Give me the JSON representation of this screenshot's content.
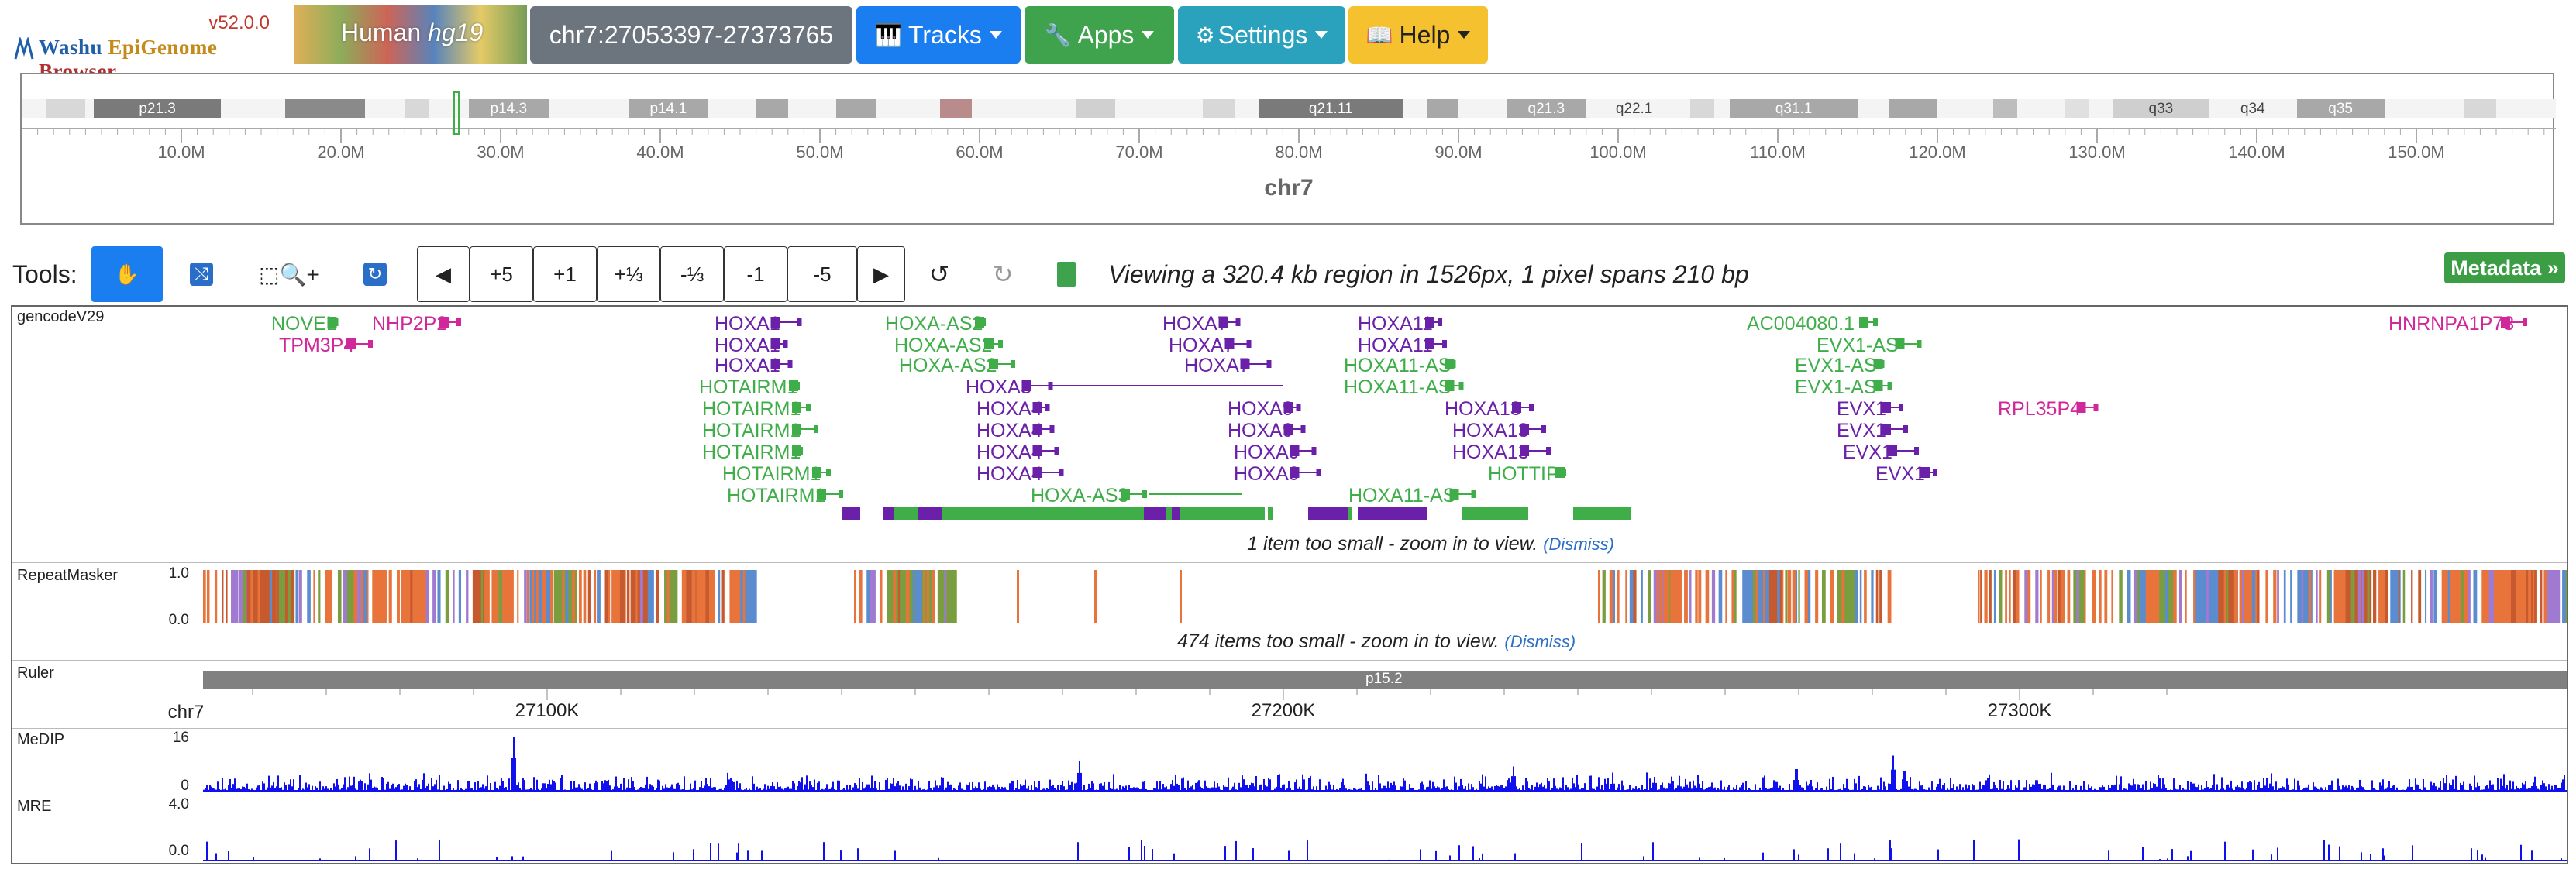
{
  "app": {
    "version": "v52.0.0",
    "title_w": "Washu ",
    "title_e": "EpiGenome ",
    "title_b": "Browser",
    "genome_species": "Human",
    "genome_build": "hg19"
  },
  "header": {
    "locus": "chr7:27053397-27373765",
    "tracks_label": "Tracks",
    "apps_label": "Apps",
    "settings_label": "Settings",
    "help_label": "Help"
  },
  "colors": {
    "locus_btn": "#6c757d",
    "tracks_btn": "#1a7ef0",
    "apps_btn": "#3fa34d",
    "settings_btn": "#2aa1bd",
    "help_btn": "#f5c12e",
    "gene_green": "#3fae49",
    "gene_purple": "#6a20a8",
    "gene_magenta": "#d0289a",
    "medip_blue": "#1010ee",
    "repeat_orange": "#e8743b"
  },
  "ideogram": {
    "bands": [
      {
        "label": "p21.3",
        "start": 4.5,
        "end": 12.5,
        "shade": "dark"
      },
      {
        "label": "p14.3",
        "start": 28.0,
        "end": 33.0,
        "shade": "mid"
      },
      {
        "label": "p14.1",
        "start": 38.0,
        "end": 43.0,
        "shade": "mid"
      },
      {
        "label": "q21.11",
        "start": 77.5,
        "end": 86.5,
        "shade": "dark"
      },
      {
        "label": "q21.3",
        "start": 93.0,
        "end": 98.0,
        "shade": "mid"
      },
      {
        "label": "q22.1",
        "start": 98.0,
        "end": 104.0,
        "shade": "none"
      },
      {
        "label": "q31.1",
        "start": 107.0,
        "end": 115.0,
        "shade": "mid"
      },
      {
        "label": "q33",
        "start": 131.0,
        "end": 137.0,
        "shade": "light"
      },
      {
        "label": "q34",
        "start": 137.0,
        "end": 142.5,
        "shade": "none"
      },
      {
        "label": "q35",
        "start": 142.5,
        "end": 148.0,
        "shade": "mid"
      }
    ],
    "ticks": [
      "10.0M",
      "20.0M",
      "30.0M",
      "40.0M",
      "50.0M",
      "60.0M",
      "70.0M",
      "80.0M",
      "90.0M",
      "100.0M",
      "110.0M",
      "120.0M",
      "130.0M",
      "140.0M",
      "150.0M"
    ],
    "chrom": "chr7"
  },
  "tools": {
    "label": "Tools:",
    "plus5": "+5",
    "plus1": "+1",
    "plus13": "+⅓",
    "minus13": "-⅓",
    "minus1": "-1",
    "minus5": "-5",
    "viewing": "Viewing a 320.4 kb region in 1526px, 1 pixel spans 210 bp",
    "metadata": "Metadata »"
  },
  "tracks": {
    "gencode": {
      "name": "gencodeV29",
      "genes": [
        {
          "t": "NOVEL",
          "c": "g"
        },
        {
          "t": "NHP2P2",
          "c": "m"
        },
        {
          "t": "TPM3P4",
          "c": "m"
        },
        {
          "t": "HOXA1",
          "c": "p"
        },
        {
          "t": "HOXA1",
          "c": "p"
        },
        {
          "t": "HOXA1",
          "c": "p"
        },
        {
          "t": "HOTAIRM1",
          "c": "g"
        },
        {
          "t": "HOTAIRM1",
          "c": "g"
        },
        {
          "t": "HOTAIRM1",
          "c": "g"
        },
        {
          "t": "HOTAIRM1",
          "c": "g"
        },
        {
          "t": "HOTAIRM1",
          "c": "g"
        },
        {
          "t": "HOTAIRM1",
          "c": "g"
        },
        {
          "t": "HOXA-AS2",
          "c": "g"
        },
        {
          "t": "HOXA-AS2",
          "c": "g"
        },
        {
          "t": "HOXA-AS2",
          "c": "g"
        },
        {
          "t": "HOXA3",
          "c": "p"
        },
        {
          "t": "HOXA4",
          "c": "p"
        },
        {
          "t": "HOXA4",
          "c": "p"
        },
        {
          "t": "HOXA4",
          "c": "p"
        },
        {
          "t": "HOXA4",
          "c": "p"
        },
        {
          "t": "HOXA-AS3",
          "c": "g"
        },
        {
          "t": "HOXA7",
          "c": "p"
        },
        {
          "t": "HOXA7",
          "c": "p"
        },
        {
          "t": "HOXA7",
          "c": "p"
        },
        {
          "t": "HOXA9",
          "c": "p"
        },
        {
          "t": "HOXA9",
          "c": "p"
        },
        {
          "t": "HOXA9",
          "c": "p"
        },
        {
          "t": "HOXA9",
          "c": "p"
        },
        {
          "t": "HOXA11",
          "c": "p"
        },
        {
          "t": "HOXA11",
          "c": "p"
        },
        {
          "t": "HOXA11-AS",
          "c": "g"
        },
        {
          "t": "HOXA11-AS",
          "c": "g"
        },
        {
          "t": "HOXA11-AS",
          "c": "g"
        },
        {
          "t": "HOXA13",
          "c": "p"
        },
        {
          "t": "HOXA13",
          "c": "p"
        },
        {
          "t": "HOXA13",
          "c": "p"
        },
        {
          "t": "HOTTIP",
          "c": "g"
        },
        {
          "t": "AC004080.1",
          "c": "g"
        },
        {
          "t": "EVX1-AS",
          "c": "g"
        },
        {
          "t": "EVX1-AS",
          "c": "g"
        },
        {
          "t": "EVX1-AS",
          "c": "g"
        },
        {
          "t": "EVX1",
          "c": "p"
        },
        {
          "t": "EVX1",
          "c": "p"
        },
        {
          "t": "EVX1",
          "c": "p"
        },
        {
          "t": "EVX1",
          "c": "p"
        },
        {
          "t": "RPL35P4",
          "c": "m"
        },
        {
          "t": "HNRNPA1P73",
          "c": "m"
        }
      ],
      "too_small": "1 item too small - zoom in to view.",
      "dismiss": "(Dismiss)"
    },
    "repeat": {
      "name": "RepeatMasker",
      "max": "1.0",
      "min": "0.0",
      "too_small": "474 items too small - zoom in to view.",
      "dismiss": "(Dismiss)"
    },
    "ruler": {
      "name": "Ruler",
      "chrom": "chr7",
      "band": "p15.2",
      "ticks": [
        "27100K",
        "27200K",
        "27300K"
      ]
    },
    "medip": {
      "name": "MeDIP",
      "max": "16",
      "min": "0"
    },
    "mre": {
      "name": "MRE",
      "max": "4.0",
      "min": "0.0"
    }
  }
}
